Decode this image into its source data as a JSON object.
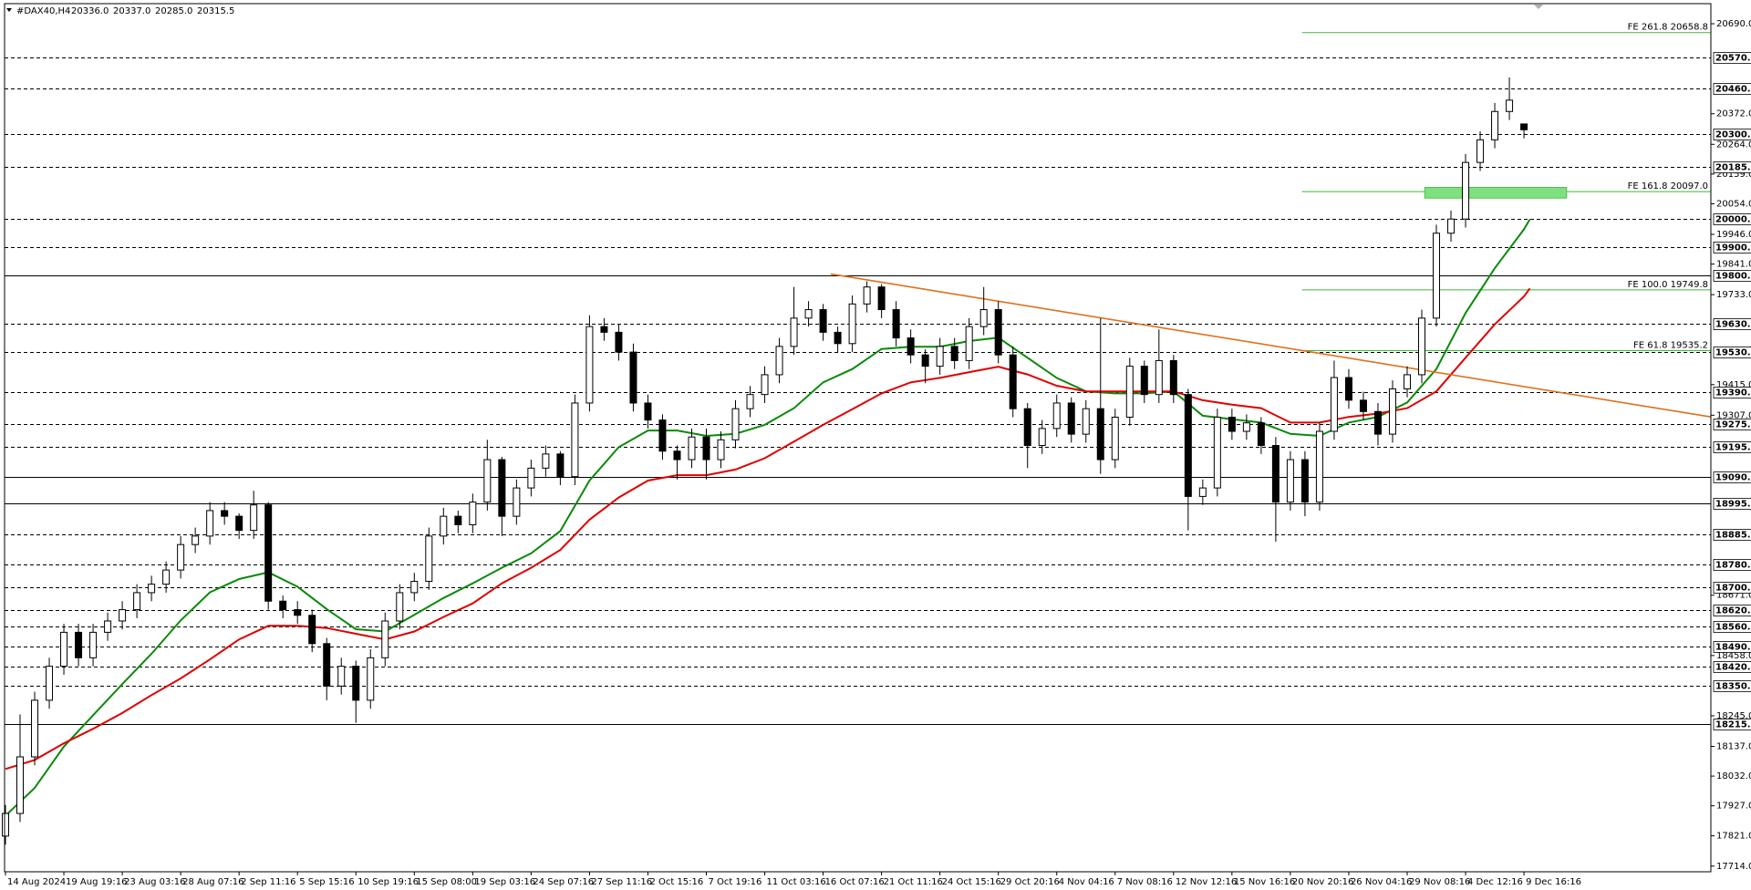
{
  "chart_data": {
    "type": "candlestick",
    "title": "#DAX40,H4",
    "quote": [
      "20336.0",
      "20337.0",
      "20285.0",
      "20315.5"
    ],
    "xlim": [
      0,
      29.2
    ],
    "ylim": [
      17694,
      20761
    ],
    "xticks": [
      {
        "value": 0,
        "label": "14 Aug 2024"
      },
      {
        "value": 1,
        "label": "19 Aug 19:16"
      },
      {
        "value": 2,
        "label": "23 Aug 03:16"
      },
      {
        "value": 3,
        "label": "28 Aug 07:16"
      },
      {
        "value": 4,
        "label": "2 Sep 11:16"
      },
      {
        "value": 5,
        "label": "5 Sep 15:16"
      },
      {
        "value": 6,
        "label": "10 Sep 19:16"
      },
      {
        "value": 7,
        "label": "15 Sep 08:00"
      },
      {
        "value": 8,
        "label": "19 Sep 03:16"
      },
      {
        "value": 9,
        "label": "24 Sep 07:16"
      },
      {
        "value": 10,
        "label": "27 Sep 11:16"
      },
      {
        "value": 11,
        "label": "2 Oct 15:16"
      },
      {
        "value": 12,
        "label": "7 Oct 19:16"
      },
      {
        "value": 13,
        "label": "11 Oct 03:16"
      },
      {
        "value": 14,
        "label": "16 Oct 07:16"
      },
      {
        "value": 15,
        "label": "21 Oct 11:16"
      },
      {
        "value": 16,
        "label": "24 Oct 15:16"
      },
      {
        "value": 17,
        "label": "29 Oct 20:16"
      },
      {
        "value": 18,
        "label": "4 Nov 04:16"
      },
      {
        "value": 19,
        "label": "7 Nov 08:16"
      },
      {
        "value": 20,
        "label": "12 Nov 12:16"
      },
      {
        "value": 21,
        "label": "15 Nov 16:16"
      },
      {
        "value": 22,
        "label": "20 Nov 20:16"
      },
      {
        "value": 23,
        "label": "26 Nov 04:16"
      },
      {
        "value": 24,
        "label": "29 Nov 08:16"
      },
      {
        "value": 25,
        "label": "4 Dec 12:16"
      },
      {
        "value": 26,
        "label": "9 Dec 16:16"
      }
    ],
    "yticks": [
      {
        "value": 20690,
        "label": "20690.0"
      },
      {
        "value": 20372,
        "label": "20372.0"
      },
      {
        "value": 20264,
        "label": "20264.0"
      },
      {
        "value": 20159,
        "label": "20159.0"
      },
      {
        "value": 20054,
        "label": "20054.0"
      },
      {
        "value": 19946,
        "label": "19946.0"
      },
      {
        "value": 19841,
        "label": "19841.0"
      },
      {
        "value": 19733,
        "label": "19733.0"
      },
      {
        "value": 19415,
        "label": "19415.0"
      },
      {
        "value": 19307,
        "label": "19307.0"
      },
      {
        "value": 18671,
        "label": "18671.0"
      },
      {
        "value": 18458,
        "label": "18458.0"
      },
      {
        "value": 18245,
        "label": "18245.0"
      },
      {
        "value": 18137,
        "label": "18137.0"
      },
      {
        "value": 18032,
        "label": "18032.0"
      },
      {
        "value": 17927,
        "label": "17927.0"
      },
      {
        "value": 17821,
        "label": "17821.0"
      },
      {
        "value": 17714,
        "label": "17714.0"
      }
    ],
    "levels": [
      {
        "value": 20570,
        "label": "20570.0",
        "dashed": true
      },
      {
        "value": 20460,
        "label": "20460.0",
        "dashed": true
      },
      {
        "value": 20300,
        "label": "20300.0",
        "dashed": true
      },
      {
        "value": 20185,
        "label": "20185.0",
        "dashed": true
      },
      {
        "value": 20000,
        "label": "20000.0",
        "dashed": true
      },
      {
        "value": 19900,
        "label": "19900.0",
        "dashed": true
      },
      {
        "value": 19800,
        "label": "19800.0",
        "dashed": false
      },
      {
        "value": 19630,
        "label": "19630.0",
        "dashed": true
      },
      {
        "value": 19530,
        "label": "19530.0",
        "dashed": true
      },
      {
        "value": 19390,
        "label": "19390.0",
        "dashed": true
      },
      {
        "value": 19275,
        "label": "19275.0",
        "dashed": true
      },
      {
        "value": 19195,
        "label": "19195.0",
        "dashed": true
      },
      {
        "value": 19090,
        "label": "19090.0",
        "dashed": false
      },
      {
        "value": 18995,
        "label": "18995.0",
        "dashed": false
      },
      {
        "value": 18885,
        "label": "18885.0",
        "dashed": true
      },
      {
        "value": 18780,
        "label": "18780.0",
        "dashed": true
      },
      {
        "value": 18700,
        "label": "18700.0",
        "dashed": true
      },
      {
        "value": 18620,
        "label": "18620.0",
        "dashed": true
      },
      {
        "value": 18560,
        "label": "18560.0",
        "dashed": true
      },
      {
        "value": 18490,
        "label": "18490.0",
        "dashed": true
      },
      {
        "value": 18420,
        "label": "18420.0",
        "dashed": true
      },
      {
        "value": 18350,
        "label": "18350.0",
        "dashed": true
      },
      {
        "value": 18215,
        "label": "18215.0",
        "dashed": false
      }
    ],
    "fibonacci": {
      "color": "#3cb83c",
      "start_x": 22.2,
      "levels": [
        {
          "value": 20658.8,
          "label": "FE 261.8 20658.8"
        },
        {
          "value": 20097.0,
          "label": "FE 161.8 20097.0"
        },
        {
          "value": 19749.8,
          "label": "FE 100.0 19749.8"
        },
        {
          "value": 19535.2,
          "label": "FE 61.8 19535.2"
        }
      ]
    },
    "zone": {
      "x": [
        24.3,
        26.73
      ],
      "y": [
        20074,
        20112
      ],
      "color": "#7fe07f"
    },
    "trendline": {
      "x": [
        14.13,
        29.2
      ],
      "y": [
        19806,
        19301
      ],
      "color": "#e0701c"
    },
    "moving_averages": [
      {
        "color": "#0a8a0a",
        "x": [
          0,
          0.5,
          1,
          1.5,
          2,
          2.5,
          3,
          3.5,
          4,
          4.5,
          5,
          5.5,
          6,
          6.5,
          7,
          7.5,
          8,
          8.5,
          9,
          9.5,
          10,
          10.5,
          11,
          11.5,
          12,
          12.5,
          13,
          13.5,
          14,
          14.5,
          15,
          15.5,
          16,
          16.5,
          17,
          17.5,
          18,
          18.5,
          19,
          19.5,
          20,
          20.5,
          21,
          21.5,
          22,
          22.5,
          23,
          23.5,
          24,
          24.5,
          25,
          25.5,
          26,
          26.1
        ],
        "values": [
          17892,
          17990,
          18136,
          18247,
          18357,
          18464,
          18582,
          18681,
          18728,
          18752,
          18701,
          18622,
          18551,
          18543,
          18602,
          18661,
          18713,
          18768,
          18819,
          18898,
          19076,
          19194,
          19253,
          19253,
          19234,
          19241,
          19273,
          19332,
          19423,
          19470,
          19541,
          19549,
          19549,
          19569,
          19581,
          19510,
          19439,
          19391,
          19384,
          19384,
          19391,
          19305,
          19293,
          19281,
          19241,
          19234,
          19281,
          19301,
          19352,
          19470,
          19668,
          19826,
          19964,
          19999
        ]
      },
      {
        "color": "#e00000",
        "x": [
          0,
          0.5,
          1,
          1.5,
          2,
          2.5,
          3,
          3.5,
          4,
          4.5,
          5,
          5.5,
          6,
          6.5,
          7,
          7.5,
          8,
          8.5,
          9,
          9.5,
          10,
          10.5,
          11,
          11.5,
          12,
          12.5,
          13,
          13.5,
          14,
          14.5,
          15,
          15.5,
          16,
          16.5,
          17,
          17.5,
          18,
          18.5,
          19,
          19.5,
          20,
          20.5,
          21,
          21.5,
          22,
          22.5,
          23,
          23.5,
          24,
          24.5,
          25,
          25.5,
          26,
          26.1
        ],
        "values": [
          18057,
          18089,
          18148,
          18199,
          18255,
          18318,
          18377,
          18444,
          18515,
          18563,
          18563,
          18555,
          18535,
          18515,
          18543,
          18594,
          18642,
          18713,
          18768,
          18831,
          18938,
          19016,
          19076,
          19095,
          19095,
          19115,
          19155,
          19214,
          19273,
          19328,
          19384,
          19423,
          19439,
          19459,
          19478,
          19451,
          19411,
          19391,
          19391,
          19391,
          19391,
          19360,
          19344,
          19332,
          19281,
          19281,
          19301,
          19313,
          19332,
          19391,
          19510,
          19628,
          19727,
          19755
        ]
      }
    ],
    "candles": {
      "x": [
        0,
        0.25,
        0.5,
        0.75,
        1,
        1.25,
        1.5,
        1.75,
        2,
        2.25,
        2.5,
        2.75,
        3,
        3.25,
        3.5,
        3.75,
        4,
        4.25,
        4.5,
        4.75,
        5,
        5.25,
        5.5,
        5.75,
        6,
        6.25,
        6.5,
        6.75,
        7,
        7.25,
        7.5,
        7.75,
        8,
        8.25,
        8.5,
        8.75,
        9,
        9.25,
        9.5,
        9.75,
        10,
        10.25,
        10.5,
        10.75,
        11,
        11.25,
        11.5,
        11.75,
        12,
        12.25,
        12.5,
        12.75,
        13,
        13.25,
        13.5,
        13.75,
        14,
        14.25,
        14.5,
        14.75,
        15,
        15.25,
        15.5,
        15.75,
        16,
        16.25,
        16.5,
        16.75,
        17,
        17.25,
        17.5,
        17.75,
        18,
        18.25,
        18.5,
        18.75,
        19,
        19.25,
        19.5,
        19.75,
        20,
        20.25,
        20.5,
        20.75,
        21,
        21.25,
        21.5,
        21.75,
        22,
        22.25,
        22.5,
        22.75,
        23,
        23.25,
        23.5,
        23.75,
        24,
        24.25,
        24.5,
        24.75,
        25,
        25.25,
        25.5,
        25.75,
        26
      ],
      "open": [
        17820,
        17900,
        18100,
        18300,
        18420,
        18540,
        18450,
        18540,
        18580,
        18620,
        18680,
        18710,
        18760,
        18850,
        18880,
        18970,
        18950,
        18900,
        18990,
        18650,
        18620,
        18600,
        18500,
        18350,
        18420,
        18300,
        18450,
        18580,
        18680,
        18720,
        18880,
        18950,
        18920,
        19000,
        19150,
        18950,
        19050,
        19120,
        19170,
        19090,
        19350,
        19620,
        19600,
        19530,
        19350,
        19290,
        19180,
        19150,
        19230,
        19150,
        19220,
        19330,
        19380,
        19450,
        19550,
        19650,
        19680,
        19600,
        19560,
        19700,
        19760,
        19680,
        19580,
        19520,
        19480,
        19550,
        19500,
        19620,
        19680,
        19520,
        19330,
        19200,
        19260,
        19350,
        19240,
        19330,
        19150,
        19300,
        19480,
        19380,
        19500,
        19380,
        19020,
        19050,
        19300,
        19250,
        19280,
        19200,
        19000,
        19150,
        19000,
        19250,
        19440,
        19360,
        19320,
        19240,
        19400,
        19450,
        19650,
        19950,
        20000,
        20200,
        20280,
        20380,
        20336
      ],
      "high": [
        17930,
        18250,
        18330,
        18450,
        18570,
        18570,
        18570,
        18610,
        18650,
        18710,
        18740,
        18790,
        18880,
        18910,
        19000,
        19000,
        18960,
        19040,
        19000,
        18670,
        18650,
        18620,
        18520,
        18450,
        18440,
        18480,
        18610,
        18710,
        18750,
        18910,
        18980,
        18970,
        19030,
        19220,
        19160,
        19080,
        19150,
        19200,
        19180,
        19380,
        19660,
        19650,
        19630,
        19560,
        19380,
        19310,
        19200,
        19260,
        19260,
        19250,
        19360,
        19410,
        19480,
        19580,
        19760,
        19710,
        19700,
        19620,
        19730,
        19780,
        19770,
        19710,
        19610,
        19540,
        19580,
        19580,
        19650,
        19760,
        19710,
        19550,
        19350,
        19290,
        19380,
        19370,
        19360,
        19650,
        19330,
        19510,
        19500,
        19610,
        19520,
        19400,
        19080,
        19330,
        19330,
        19310,
        19300,
        19230,
        19180,
        19180,
        19280,
        19500,
        19470,
        19390,
        19350,
        19430,
        19480,
        19680,
        19980,
        20030,
        20230,
        20310,
        20410,
        20500,
        20337
      ],
      "low": [
        17790,
        17870,
        18070,
        18270,
        18390,
        18420,
        18420,
        18510,
        18550,
        18590,
        18650,
        18680,
        18730,
        18820,
        18850,
        18920,
        18870,
        18870,
        18620,
        18590,
        18570,
        18470,
        18300,
        18320,
        18220,
        18270,
        18420,
        18550,
        18650,
        18690,
        18850,
        18890,
        18890,
        18970,
        18880,
        18920,
        19020,
        19090,
        19060,
        19060,
        19320,
        19570,
        19500,
        19320,
        19260,
        19150,
        19080,
        19120,
        19080,
        19120,
        19190,
        19300,
        19350,
        19420,
        19520,
        19620,
        19570,
        19530,
        19530,
        19670,
        19650,
        19550,
        19490,
        19420,
        19450,
        19470,
        19470,
        19590,
        19490,
        19300,
        19120,
        19170,
        19230,
        19210,
        19210,
        19100,
        19120,
        19270,
        19350,
        19350,
        19350,
        18900,
        18990,
        19020,
        19220,
        19220,
        19170,
        18860,
        18970,
        18950,
        18970,
        19220,
        19330,
        19290,
        19200,
        19210,
        19370,
        19420,
        19620,
        19920,
        19970,
        20170,
        20250,
        20350,
        20285
      ],
      "close": [
        17900,
        18100,
        18300,
        18420,
        18540,
        18450,
        18540,
        18580,
        18620,
        18680,
        18710,
        18760,
        18850,
        18880,
        18970,
        18950,
        18900,
        18990,
        18650,
        18620,
        18600,
        18500,
        18350,
        18420,
        18300,
        18450,
        18580,
        18680,
        18720,
        18880,
        18950,
        18920,
        19000,
        19150,
        18950,
        19050,
        19120,
        19170,
        19090,
        19350,
        19620,
        19600,
        19530,
        19350,
        19290,
        19180,
        19150,
        19230,
        19150,
        19220,
        19330,
        19380,
        19450,
        19550,
        19650,
        19680,
        19600,
        19560,
        19700,
        19760,
        19680,
        19580,
        19520,
        19480,
        19550,
        19500,
        19620,
        19680,
        19520,
        19330,
        19200,
        19260,
        19350,
        19240,
        19330,
        19150,
        19300,
        19480,
        19380,
        19500,
        19380,
        19020,
        19050,
        19300,
        19250,
        19280,
        19200,
        19000,
        19150,
        19000,
        19250,
        19440,
        19360,
        19320,
        19240,
        19400,
        19450,
        19650,
        19950,
        20000,
        20200,
        20280,
        20380,
        20420,
        20315.5
      ]
    }
  }
}
